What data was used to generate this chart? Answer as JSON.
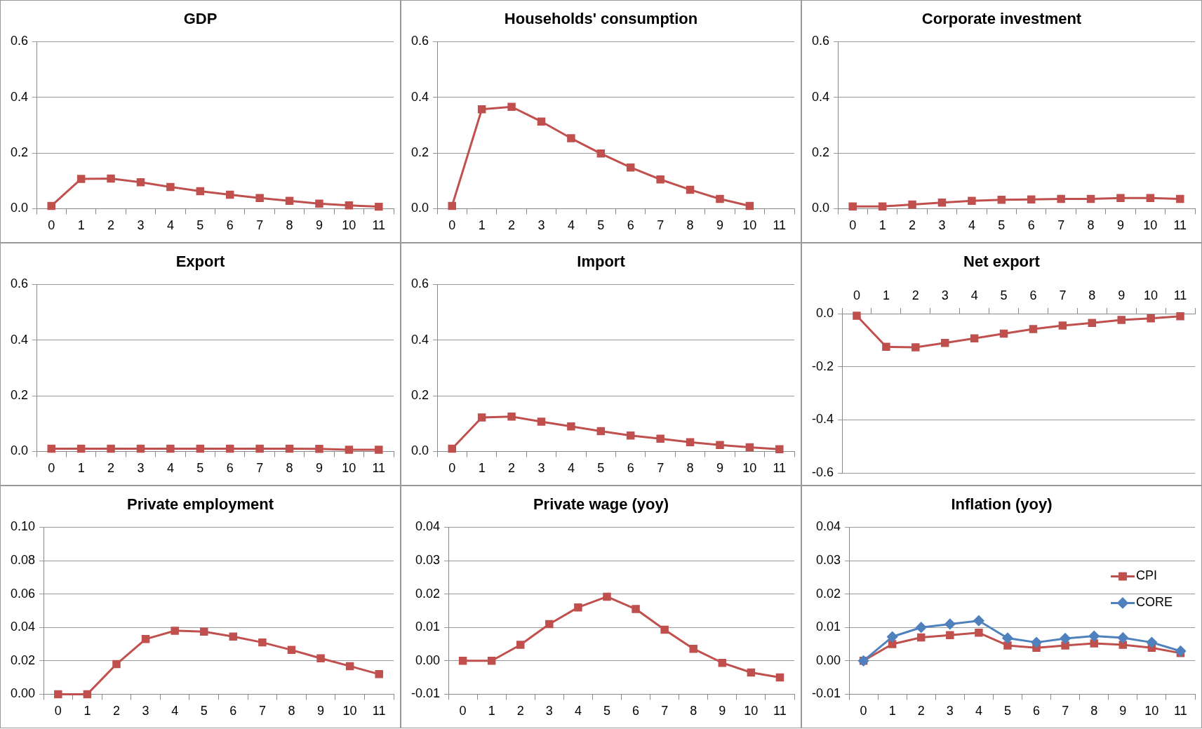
{
  "chart_data": [
    {
      "type": "line",
      "title": "GDP",
      "categories": [
        "0",
        "1",
        "2",
        "3",
        "4",
        "5",
        "6",
        "7",
        "8",
        "9",
        "10",
        "11"
      ],
      "marker": "square",
      "grid": "y",
      "legend": false,
      "series": [
        {
          "color": "#c0504d",
          "values": [
            0.01,
            0.107,
            0.108,
            0.095,
            0.078,
            0.063,
            0.05,
            0.038,
            0.028,
            0.018,
            0.012,
            0.007
          ]
        }
      ],
      "ylim": [
        0,
        0.6
      ],
      "yticks": [
        {
          "value": 0,
          "label": "0.0"
        },
        {
          "value": 0.2,
          "label": "0.2"
        },
        {
          "value": 0.4,
          "label": "0.4"
        },
        {
          "value": 0.6,
          "label": "0.6"
        }
      ]
    },
    {
      "type": "line",
      "title": "Households' consumption",
      "categories": [
        "0",
        "1",
        "2",
        "3",
        "4",
        "5",
        "6",
        "7",
        "8",
        "9",
        "10",
        "11"
      ],
      "marker": "square",
      "grid": "y",
      "legend": false,
      "series": [
        {
          "color": "#c0504d",
          "values": [
            0.01,
            0.357,
            0.366,
            0.313,
            0.253,
            0.198,
            0.148,
            0.105,
            0.068,
            0.035,
            0.01,
            null
          ]
        }
      ],
      "ylim": [
        0,
        0.6
      ],
      "yticks": [
        {
          "value": 0,
          "label": "0.0"
        },
        {
          "value": 0.2,
          "label": "0.2"
        },
        {
          "value": 0.4,
          "label": "0.4"
        },
        {
          "value": 0.6,
          "label": "0.6"
        }
      ]
    },
    {
      "type": "line",
      "title": "Corporate investment",
      "categories": [
        "0",
        "1",
        "2",
        "3",
        "4",
        "5",
        "6",
        "7",
        "8",
        "9",
        "10",
        "11"
      ],
      "marker": "square",
      "grid": "y",
      "legend": false,
      "series": [
        {
          "color": "#c0504d",
          "values": [
            0.008,
            0.008,
            0.015,
            0.022,
            0.028,
            0.032,
            0.033,
            0.035,
            0.035,
            0.038,
            0.038,
            0.035
          ]
        }
      ],
      "ylim": [
        0,
        0.6
      ],
      "yticks": [
        {
          "value": 0,
          "label": "0.0"
        },
        {
          "value": 0.2,
          "label": "0.2"
        },
        {
          "value": 0.4,
          "label": "0.4"
        },
        {
          "value": 0.6,
          "label": "0.6"
        }
      ]
    },
    {
      "type": "line",
      "title": "Export",
      "categories": [
        "0",
        "1",
        "2",
        "3",
        "4",
        "5",
        "6",
        "7",
        "8",
        "9",
        "10",
        "11"
      ],
      "marker": "square",
      "grid": "y",
      "legend": false,
      "series": [
        {
          "color": "#c0504d",
          "values": [
            0.01,
            0.01,
            0.01,
            0.01,
            0.01,
            0.01,
            0.01,
            0.01,
            0.01,
            0.009,
            0.006,
            0.006
          ]
        }
      ],
      "ylim": [
        0,
        0.6
      ],
      "yticks": [
        {
          "value": 0,
          "label": "0.0"
        },
        {
          "value": 0.2,
          "label": "0.2"
        },
        {
          "value": 0.4,
          "label": "0.4"
        },
        {
          "value": 0.6,
          "label": "0.6"
        }
      ]
    },
    {
      "type": "line",
      "title": "Import",
      "categories": [
        "0",
        "1",
        "2",
        "3",
        "4",
        "5",
        "6",
        "7",
        "8",
        "9",
        "10",
        "11"
      ],
      "marker": "square",
      "grid": "y",
      "legend": false,
      "series": [
        {
          "color": "#c0504d",
          "values": [
            0.01,
            0.122,
            0.125,
            0.107,
            0.09,
            0.073,
            0.057,
            0.046,
            0.033,
            0.023,
            0.015,
            0.008
          ]
        }
      ],
      "ylim": [
        0,
        0.6
      ],
      "yticks": [
        {
          "value": 0,
          "label": "0.0"
        },
        {
          "value": 0.2,
          "label": "0.2"
        },
        {
          "value": 0.4,
          "label": "0.4"
        },
        {
          "value": 0.6,
          "label": "0.6"
        }
      ]
    },
    {
      "type": "line",
      "title": "Net export",
      "categories": [
        "0",
        "1",
        "2",
        "3",
        "4",
        "5",
        "6",
        "7",
        "8",
        "9",
        "10",
        "11"
      ],
      "marker": "square",
      "grid": "y",
      "legend": false,
      "series": [
        {
          "color": "#c0504d",
          "values": [
            -0.008,
            -0.125,
            -0.127,
            -0.11,
            -0.093,
            -0.075,
            -0.058,
            -0.045,
            -0.035,
            -0.024,
            -0.018,
            -0.01
          ]
        }
      ],
      "ylim": [
        -0.6,
        0
      ],
      "yticks": [
        {
          "value": -0.6,
          "label": "-0.6"
        },
        {
          "value": -0.4,
          "label": "-0.4"
        },
        {
          "value": -0.2,
          "label": "-0.2"
        },
        {
          "value": 0,
          "label": "0.0"
        }
      ]
    },
    {
      "type": "line",
      "title": "Private employment",
      "categories": [
        "0",
        "1",
        "2",
        "3",
        "4",
        "5",
        "6",
        "7",
        "8",
        "9",
        "10",
        "11"
      ],
      "marker": "square",
      "grid": "y",
      "legend": false,
      "series": [
        {
          "color": "#c0504d",
          "values": [
            0,
            0,
            0.018,
            0.033,
            0.038,
            0.0375,
            0.0345,
            0.031,
            0.0265,
            0.0215,
            0.0168,
            0.012
          ]
        }
      ],
      "ylim": [
        0,
        0.1
      ],
      "yticks": [
        {
          "value": 0,
          "label": "0.00"
        },
        {
          "value": 0.02,
          "label": "0.02"
        },
        {
          "value": 0.04,
          "label": "0.04"
        },
        {
          "value": 0.06,
          "label": "0.06"
        },
        {
          "value": 0.08,
          "label": "0.08"
        },
        {
          "value": 0.1,
          "label": "0.10"
        }
      ]
    },
    {
      "type": "line",
      "title": "Private wage (yoy)",
      "categories": [
        "0",
        "1",
        "2",
        "3",
        "4",
        "5",
        "6",
        "7",
        "8",
        "9",
        "10",
        "11"
      ],
      "marker": "square",
      "grid": "y",
      "legend": false,
      "series": [
        {
          "color": "#c0504d",
          "values": [
            0,
            0,
            0.0048,
            0.011,
            0.016,
            0.0192,
            0.0155,
            0.0093,
            0.0036,
            -0.0006,
            -0.0035,
            -0.005
          ]
        }
      ],
      "ylim": [
        -0.01,
        0.04
      ],
      "yticks": [
        {
          "value": -0.01,
          "label": "-0.01"
        },
        {
          "value": 0,
          "label": "0.00"
        },
        {
          "value": 0.01,
          "label": "0.01"
        },
        {
          "value": 0.02,
          "label": "0.02"
        },
        {
          "value": 0.03,
          "label": "0.03"
        },
        {
          "value": 0.04,
          "label": "0.04"
        }
      ]
    },
    {
      "type": "line",
      "title": "Inflation (yoy)",
      "categories": [
        "0",
        "1",
        "2",
        "3",
        "4",
        "5",
        "6",
        "7",
        "8",
        "9",
        "10",
        "11"
      ],
      "grid": "y",
      "legend": "right",
      "series": [
        {
          "name": "CPI",
          "color": "#c0504d",
          "marker": "square",
          "values": [
            0,
            0.005,
            0.007,
            0.0077,
            0.0084,
            0.0046,
            0.0039,
            0.0046,
            0.0052,
            0.0048,
            0.0039,
            0.0023
          ]
        },
        {
          "name": "CORE",
          "color": "#4f81bd",
          "marker": "diamond",
          "values": [
            0,
            0.0072,
            0.01,
            0.011,
            0.012,
            0.0068,
            0.0055,
            0.0067,
            0.0074,
            0.0069,
            0.0055,
            0.0029
          ]
        }
      ],
      "ylim": [
        -0.01,
        0.04
      ],
      "yticks": [
        {
          "value": -0.01,
          "label": "-0.01"
        },
        {
          "value": 0,
          "label": "0.00"
        },
        {
          "value": 0.01,
          "label": "0.01"
        },
        {
          "value": 0.02,
          "label": "0.02"
        },
        {
          "value": 0.03,
          "label": "0.03"
        },
        {
          "value": 0.04,
          "label": "0.04"
        }
      ]
    }
  ]
}
